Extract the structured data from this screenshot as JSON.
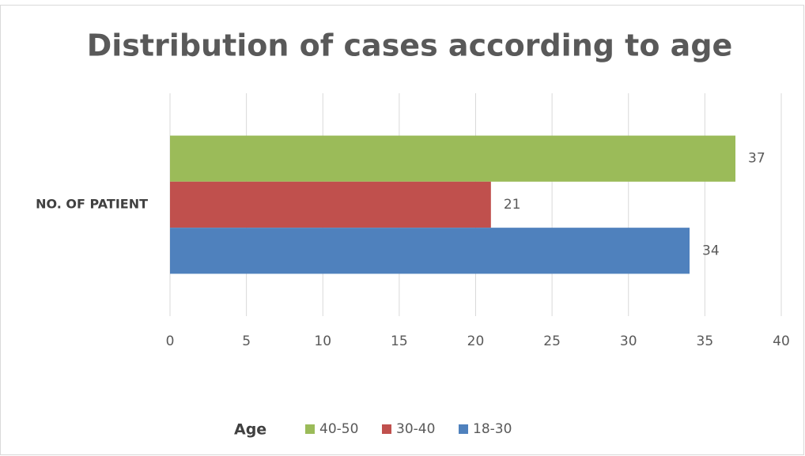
{
  "chart_data": {
    "type": "hbar",
    "title": "Distribution of cases according to age",
    "categories": [
      "NO. OF PATIENT"
    ],
    "series": [
      {
        "name": "40-50",
        "color": "#9bbb59",
        "values": [
          37
        ]
      },
      {
        "name": "30-40",
        "color": "#c0504d",
        "values": [
          21
        ]
      },
      {
        "name": "18-30",
        "color": "#4f81bd",
        "values": [
          34
        ]
      }
    ],
    "legend_title": "Age",
    "xlim": [
      0,
      40
    ],
    "xticks": [
      0,
      5,
      10,
      15,
      20,
      25,
      30,
      35,
      40
    ],
    "grid": true,
    "legend": "bottom"
  }
}
